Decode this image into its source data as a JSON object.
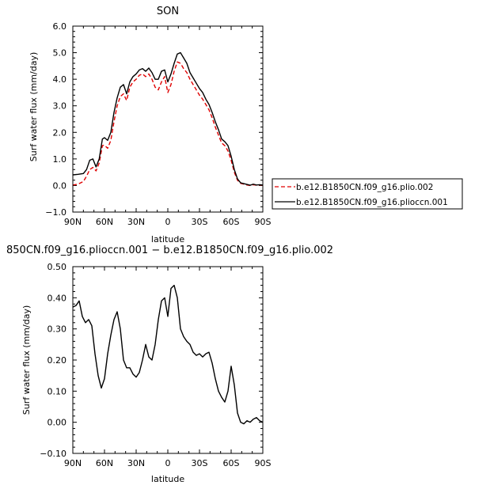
{
  "chart_data": [
    {
      "type": "line",
      "title": "SON",
      "xlabel": "latitude",
      "ylabel": "Surf water flux (mm/day)",
      "xlim": [
        90,
        -90
      ],
      "ylim": [
        -1.0,
        6.0
      ],
      "x_ticks": [
        90,
        60,
        30,
        0,
        -30,
        -60,
        -90
      ],
      "x_tick_labels": [
        "90N",
        "60N",
        "30N",
        "0",
        "30S",
        "60S",
        "90S"
      ],
      "y_ticks": [
        -1.0,
        0.0,
        1.0,
        2.0,
        3.0,
        4.0,
        5.0,
        6.0
      ],
      "y_tick_labels": [
        "−1.0",
        "0.0",
        "1.0",
        "2.0",
        "3.0",
        "4.0",
        "5.0",
        "6.0"
      ],
      "legend_position": "right",
      "x": [
        90,
        85,
        80,
        77,
        74,
        71,
        68,
        65,
        62,
        60,
        57,
        54,
        51,
        48,
        45,
        42,
        39,
        36,
        33,
        30,
        27,
        24,
        21,
        18,
        15,
        12,
        9,
        6,
        3,
        0,
        -3,
        -6,
        -9,
        -12,
        -15,
        -18,
        -21,
        -24,
        -27,
        -30,
        -33,
        -36,
        -39,
        -42,
        -45,
        -48,
        -51,
        -54,
        -57,
        -60,
        -63,
        -66,
        -69,
        -72,
        -75,
        -78,
        -81,
        -84,
        -87,
        -90
      ],
      "series": [
        {
          "name": "b.e12.B1850CN.f09_g16.plio.002",
          "color": "#e00000",
          "dash": "dashed",
          "values": [
            0.02,
            0.05,
            0.15,
            0.35,
            0.6,
            0.68,
            0.55,
            0.85,
            1.5,
            1.52,
            1.4,
            1.7,
            2.4,
            3.0,
            3.35,
            3.45,
            3.2,
            3.7,
            3.9,
            4.0,
            4.15,
            4.2,
            4.1,
            4.2,
            4.0,
            3.7,
            3.6,
            3.9,
            4.1,
            3.5,
            3.8,
            4.3,
            4.65,
            4.6,
            4.4,
            4.25,
            4.0,
            3.8,
            3.6,
            3.4,
            3.25,
            3.05,
            2.85,
            2.55,
            2.2,
            1.9,
            1.6,
            1.5,
            1.3,
            0.95,
            0.5,
            0.2,
            0.08,
            0.05,
            0.02,
            0.0,
            0.03,
            0.01,
            0.02,
            0.01
          ]
        },
        {
          "name": "b.e12.B1850CN.f09_g16.plioccn.001",
          "color": "#000000",
          "dash": "solid",
          "values": [
            0.4,
            0.42,
            0.45,
            0.6,
            0.95,
            1.0,
            0.7,
            1.0,
            1.75,
            1.8,
            1.7,
            2.0,
            2.75,
            3.3,
            3.7,
            3.8,
            3.45,
            3.9,
            4.1,
            4.2,
            4.35,
            4.4,
            4.3,
            4.42,
            4.25,
            4.0,
            4.0,
            4.3,
            4.35,
            3.9,
            4.2,
            4.6,
            4.95,
            5.0,
            4.8,
            4.6,
            4.25,
            4.05,
            3.85,
            3.65,
            3.5,
            3.25,
            3.05,
            2.75,
            2.4,
            2.1,
            1.75,
            1.65,
            1.5,
            1.1,
            0.6,
            0.25,
            0.1,
            0.07,
            0.04,
            0.01,
            0.05,
            0.02,
            0.03,
            0.02
          ]
        }
      ]
    },
    {
      "type": "line",
      "title": "850CN.f09_g16.plioccn.001 − b.e12.B1850CN.f09_g16.plio.002",
      "xlabel": "latitude",
      "ylabel": "Surf water flux (mm/day)",
      "xlim": [
        90,
        -90
      ],
      "ylim": [
        -0.1,
        0.5
      ],
      "x_ticks": [
        90,
        60,
        30,
        0,
        -30,
        -60,
        -90
      ],
      "x_tick_labels": [
        "90N",
        "60N",
        "30N",
        "0",
        "30S",
        "60S",
        "90S"
      ],
      "y_ticks": [
        -0.1,
        0.0,
        0.1,
        0.2,
        0.3,
        0.4,
        0.5
      ],
      "y_tick_labels": [
        "−0.10",
        "0.00",
        "0.10",
        "0.20",
        "0.30",
        "0.40",
        "0.50"
      ],
      "x": [
        90,
        87,
        84,
        81,
        78,
        75,
        72,
        69,
        66,
        63,
        60,
        57,
        54,
        51,
        48,
        45,
        42,
        39,
        36,
        33,
        30,
        27,
        24,
        21,
        18,
        15,
        12,
        9,
        6,
        3,
        0,
        -3,
        -6,
        -9,
        -12,
        -15,
        -18,
        -21,
        -24,
        -27,
        -30,
        -33,
        -36,
        -39,
        -42,
        -45,
        -48,
        -51,
        -54,
        -57,
        -60,
        -63,
        -66,
        -69,
        -72,
        -75,
        -78,
        -81,
        -84,
        -87,
        -90
      ],
      "series": [
        {
          "color": "#000000",
          "dash": "solid",
          "values": [
            0.37,
            0.375,
            0.39,
            0.34,
            0.32,
            0.33,
            0.31,
            0.22,
            0.15,
            0.11,
            0.14,
            0.22,
            0.28,
            0.33,
            0.355,
            0.3,
            0.2,
            0.175,
            0.175,
            0.155,
            0.145,
            0.16,
            0.2,
            0.25,
            0.21,
            0.2,
            0.25,
            0.33,
            0.39,
            0.4,
            0.34,
            0.43,
            0.44,
            0.4,
            0.3,
            0.275,
            0.26,
            0.25,
            0.225,
            0.215,
            0.22,
            0.21,
            0.22,
            0.225,
            0.19,
            0.14,
            0.1,
            0.08,
            0.065,
            0.1,
            0.18,
            0.12,
            0.03,
            0.0,
            -0.005,
            0.005,
            0.0,
            0.01,
            0.015,
            0.005,
            0.0
          ]
        }
      ]
    }
  ]
}
